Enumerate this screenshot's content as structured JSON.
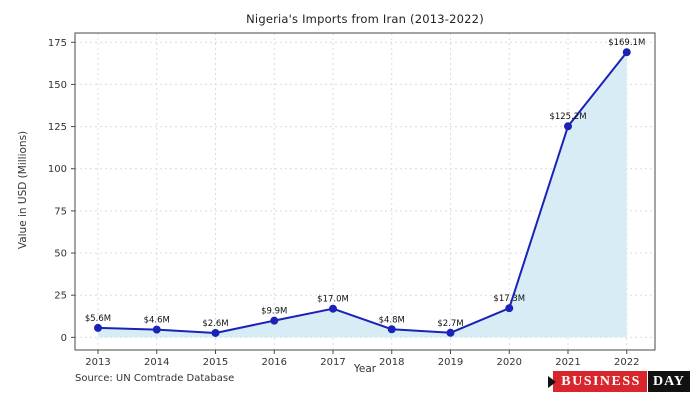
{
  "chart_data": {
    "type": "line",
    "title": "Nigeria's Imports from Iran (2013-2022)",
    "xlabel": "Year",
    "ylabel": "Value in USD (Millions)",
    "categories": [
      "2013",
      "2014",
      "2015",
      "2016",
      "2017",
      "2018",
      "2019",
      "2020",
      "2021",
      "2022"
    ],
    "values": [
      5.6,
      4.6,
      2.6,
      9.9,
      17.0,
      4.8,
      2.7,
      17.3,
      125.2,
      169.1
    ],
    "point_labels": [
      "$5.6M",
      "$4.6M",
      "$2.6M",
      "$9.9M",
      "$17.0M",
      "$4.8M",
      "$2.7M",
      "$17.3M",
      "$125.2M",
      "$169.1M"
    ],
    "yticks": [
      0,
      25,
      50,
      75,
      100,
      125,
      150,
      175
    ],
    "ylim": [
      -7.5,
      180.5
    ],
    "grid": true,
    "legend_position": "none",
    "fill_to_zero": true,
    "colors": {
      "line": "#1a22b8",
      "marker": "#1a22b8",
      "fill": "#d8ecf6",
      "grid": "#dcdcdc",
      "spine": "#4a4a4a",
      "tick_text": "#333333",
      "label_text": "#111111"
    }
  },
  "footer": {
    "source": "Source: UN Comtrade Database"
  },
  "logo": {
    "arrow_icon": "right-arrow",
    "business": "BUSINESS",
    "day": "DAY",
    "red": "#d8262c",
    "black": "#111111"
  }
}
